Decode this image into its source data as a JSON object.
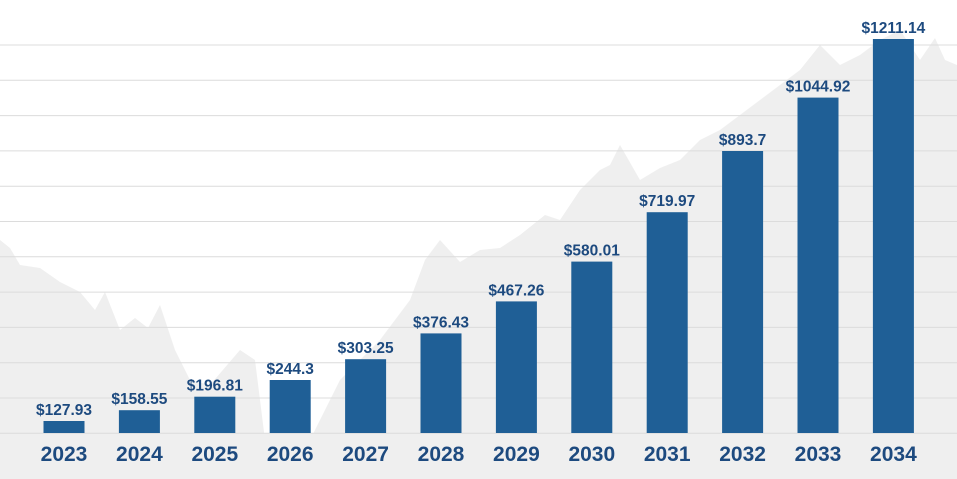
{
  "chart_data": {
    "type": "bar",
    "title": "",
    "xlabel": "",
    "ylabel": "",
    "categories": [
      "2023",
      "2024",
      "2025",
      "2026",
      "2027",
      "2028",
      "2029",
      "2030",
      "2031",
      "2032",
      "2033",
      "2034"
    ],
    "values": [
      127.93,
      158.55,
      196.81,
      244.3,
      303.25,
      376.43,
      467.26,
      580.01,
      719.97,
      893.7,
      1044.92,
      1211.14
    ],
    "data_labels": [
      "$127.93",
      "$158.55",
      "$196.81",
      "$244.3",
      "$303.25",
      "$376.43",
      "$467.26",
      "$580.01",
      "$719.97",
      "$893.7",
      "$1044.92",
      "$1211.14"
    ],
    "ylim": [
      94,
      1211.14
    ],
    "grid": true,
    "legend": "none",
    "colors": {
      "bar": "#1f5f96",
      "label": "#1d4a7f",
      "background_area": "#efefef",
      "grid": "#dcdcdc"
    }
  }
}
